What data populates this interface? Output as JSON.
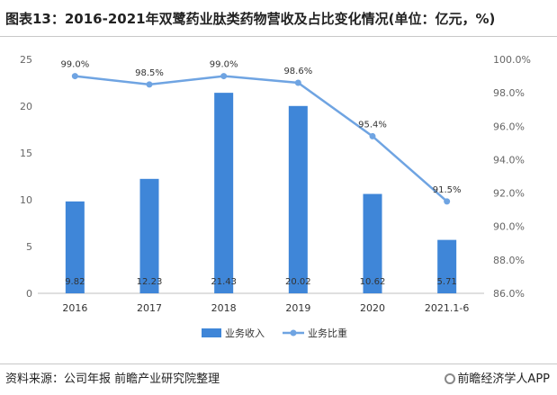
{
  "title": "图表13：2016-2021年双鹭药业肽类药物营收及占比变化情况(单位：亿元，%)",
  "source": "资料来源：公司年报 前瞻产业研究院整理",
  "brand": "前瞻经济学人APP",
  "colors": {
    "bar": "#3f86d8",
    "line": "#6fa4e2",
    "axis": "#666666",
    "grid": "#d9d9d9"
  },
  "chart_data": {
    "type": "bar",
    "categories": [
      "2016",
      "2017",
      "2018",
      "2019",
      "2020",
      "2021.1-6"
    ],
    "series": [
      {
        "name": "业务收入",
        "type": "bar",
        "axis": "left",
        "values": [
          9.82,
          12.23,
          21.43,
          20.02,
          10.62,
          5.71
        ],
        "labels": [
          "9.82",
          "12.23",
          "21.43",
          "20.02",
          "10.62",
          "5.71"
        ]
      },
      {
        "name": "业务比重",
        "type": "line",
        "axis": "right",
        "values": [
          99.0,
          98.5,
          99.0,
          98.6,
          95.4,
          91.5
        ],
        "labels": [
          "99.0%",
          "98.5%",
          "99.0%",
          "98.6%",
          "95.4%",
          "91.5%"
        ]
      }
    ],
    "y_left": {
      "min": 0,
      "max": 25,
      "ticks": [
        "0",
        "5",
        "10",
        "15",
        "20",
        "25"
      ]
    },
    "y_right": {
      "min": 86.0,
      "max": 100.0,
      "ticks": [
        "86.0%",
        "88.0%",
        "90.0%",
        "92.0%",
        "94.0%",
        "96.0%",
        "98.0%",
        "100.0%"
      ]
    },
    "legend_position": "bottom"
  }
}
